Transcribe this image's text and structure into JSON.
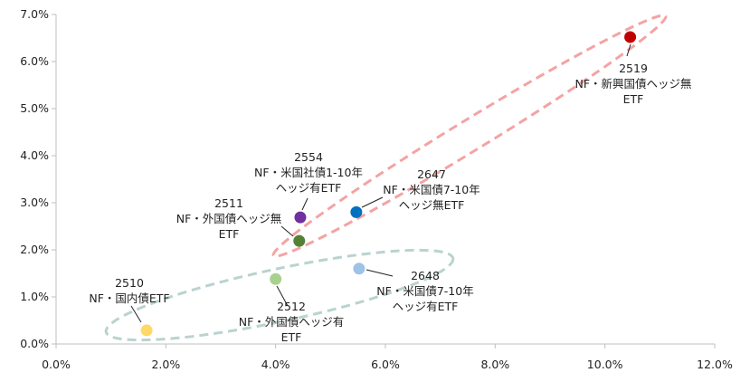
{
  "chart_data": {
    "type": "scatter",
    "title": "",
    "xlabel": "",
    "ylabel": "",
    "xlim": [
      0,
      12
    ],
    "ylim": [
      0,
      7
    ],
    "x_ticks": [
      "0.0%",
      "2.0%",
      "4.0%",
      "6.0%",
      "8.0%",
      "10.0%",
      "12.0%"
    ],
    "y_ticks": [
      "0.0%",
      "1.0%",
      "2.0%",
      "3.0%",
      "4.0%",
      "5.0%",
      "6.0%",
      "7.0%"
    ],
    "grid": false,
    "points": [
      {
        "code": "2510",
        "label": [
          "2510",
          "NF・国内債ETF"
        ],
        "x": 1.65,
        "y": 0.29,
        "color": "#ffd966"
      },
      {
        "code": "2512",
        "label": [
          "2512",
          "NF・外国債ヘッジ有",
          "ETF"
        ],
        "x": 4.0,
        "y": 1.38,
        "color": "#a9d18e"
      },
      {
        "code": "2648",
        "label": [
          "2648",
          "NF・米国債7-10年",
          "ヘッジ有ETF"
        ],
        "x": 5.52,
        "y": 1.6,
        "color": "#9dc3e6"
      },
      {
        "code": "2511",
        "label": [
          "2511",
          "NF・外国債ヘッジ無",
          "ETF"
        ],
        "x": 4.43,
        "y": 2.19,
        "color": "#548235"
      },
      {
        "code": "2554",
        "label": [
          "2554",
          "NF・米国社債1-10年",
          "ヘッジ有ETF"
        ],
        "x": 4.45,
        "y": 2.69,
        "color": "#7030a0"
      },
      {
        "code": "2647",
        "label": [
          "2647",
          "NF・米国債7-10年",
          "ヘッジ無ETF"
        ],
        "x": 5.47,
        "y": 2.8,
        "color": "#0070c0"
      },
      {
        "code": "2519",
        "label": [
          "2519",
          "NF・新興国債ヘッジ無",
          "ETF"
        ],
        "x": 10.46,
        "y": 6.52,
        "color": "#c00000"
      }
    ],
    "group_outlines": [
      {
        "members": [
          "2511",
          "2554",
          "2647",
          "2519"
        ],
        "color": "#f4a3a3",
        "style": "dashed"
      },
      {
        "members": [
          "2510",
          "2512",
          "2648"
        ],
        "color": "#b9d3d0",
        "style": "dashed"
      }
    ]
  }
}
